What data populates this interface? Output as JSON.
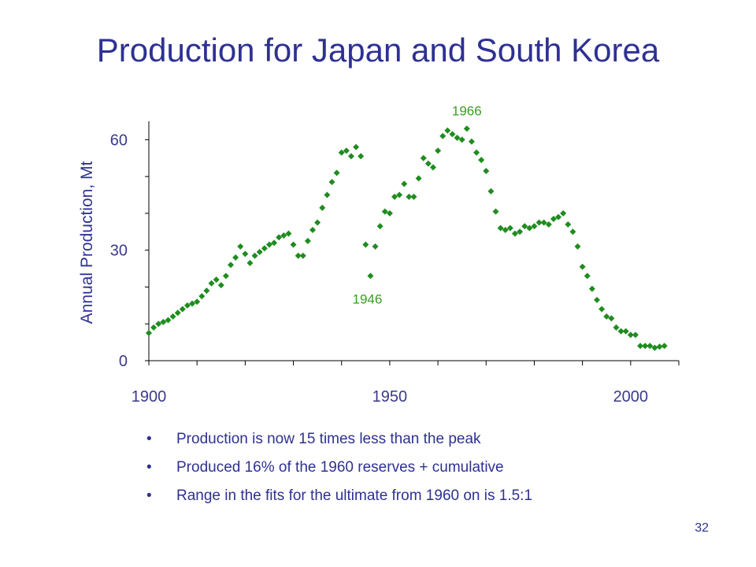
{
  "slide": {
    "title": "Production for Japan and South Korea",
    "bullets": [
      "Production is now 15 times less than the peak",
      "Produced 16% of the 1960 reserves + cumulative",
      "Range in the fits for the ultimate from 1960 on is 1.5:1"
    ],
    "page_number": "32"
  },
  "colors": {
    "title": "#2e3192",
    "points": "#1f8c1f",
    "annotations": "#3a9d23",
    "axis": "#000000"
  },
  "chart_data": {
    "type": "scatter",
    "title": "",
    "xlabel": "",
    "ylabel": "Annual Production, Mt",
    "xlim": [
      1900,
      2010
    ],
    "ylim": [
      0,
      65
    ],
    "xticks": [
      1900,
      1950,
      2000
    ],
    "xtick_labels": [
      "1900",
      "1950",
      "2000"
    ],
    "yticks": [
      0,
      30,
      60
    ],
    "ytick_labels": [
      "0",
      "30",
      "60"
    ],
    "grid": false,
    "legend": "none",
    "annotations": [
      {
        "text": "1946",
        "x": 1946,
        "y": 23
      },
      {
        "text": "1966",
        "x": 1966,
        "y": 63
      }
    ],
    "series": [
      {
        "x": [
          1900,
          1901,
          1902,
          1903,
          1904,
          1905,
          1906,
          1907,
          1908,
          1909,
          1910,
          1911,
          1912,
          1913,
          1914,
          1915,
          1916,
          1917,
          1918,
          1919,
          1920,
          1921,
          1922,
          1923,
          1924,
          1925,
          1926,
          1927,
          1928,
          1929,
          1930,
          1931,
          1932,
          1933,
          1934,
          1935,
          1936,
          1937,
          1938,
          1939,
          1940,
          1941,
          1942,
          1943,
          1944,
          1945,
          1946,
          1947,
          1948,
          1949,
          1950,
          1951,
          1952,
          1953,
          1954,
          1955,
          1956,
          1957,
          1958,
          1959,
          1960,
          1961,
          1962,
          1963,
          1964,
          1965,
          1966,
          1967,
          1968,
          1969,
          1970,
          1971,
          1972,
          1973,
          1974,
          1975,
          1976,
          1977,
          1978,
          1979,
          1980,
          1981,
          1982,
          1983,
          1984,
          1985,
          1986,
          1987,
          1988,
          1989,
          1990,
          1991,
          1992,
          1993,
          1994,
          1995,
          1996,
          1997,
          1998,
          1999,
          2000,
          2001,
          2002,
          2003,
          2004,
          2005,
          2006,
          2007
        ],
        "values": [
          7.5,
          9.0,
          10.0,
          10.5,
          11.0,
          12.0,
          13.0,
          14.0,
          15.0,
          15.5,
          16.0,
          17.5,
          19.0,
          21.0,
          22.0,
          20.5,
          23.0,
          26.0,
          28.0,
          31.0,
          29.0,
          26.5,
          28.5,
          29.5,
          30.5,
          31.5,
          32.0,
          33.5,
          34.0,
          34.5,
          31.5,
          28.5,
          28.5,
          32.5,
          35.5,
          37.5,
          41.5,
          45.0,
          48.5,
          51.0,
          56.5,
          57.0,
          55.5,
          58.0,
          55.5,
          31.5,
          23.0,
          31.0,
          36.5,
          40.5,
          40.0,
          44.5,
          45.0,
          48.0,
          44.5,
          44.5,
          49.5,
          55.0,
          53.5,
          52.5,
          57.0,
          61.0,
          62.5,
          61.5,
          60.5,
          60.0,
          63.0,
          59.5,
          56.5,
          54.5,
          51.5,
          46.0,
          40.5,
          36.0,
          35.5,
          36.0,
          34.5,
          35.0,
          36.5,
          36.0,
          36.5,
          37.5,
          37.5,
          37.0,
          38.5,
          39.0,
          40.0,
          37.0,
          35.0,
          31.0,
          25.5,
          23.0,
          19.5,
          16.5,
          14.0,
          12.0,
          11.5,
          9.0,
          8.0,
          8.0,
          7.0,
          7.0,
          4.0,
          4.0,
          4.0,
          3.5,
          3.8,
          4.0
        ]
      }
    ]
  }
}
